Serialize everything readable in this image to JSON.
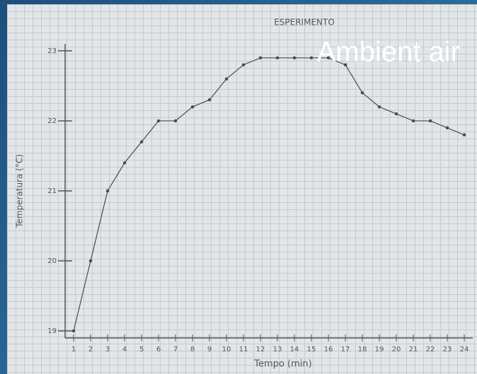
{
  "chart_data": {
    "type": "line",
    "annotation": "ESPERIMENTO",
    "overlay_title": "Ambient air",
    "xlabel": "Tempo (min)",
    "ylabel": "Temperatura (°C)",
    "x": [
      1,
      2,
      3,
      4,
      5,
      6,
      7,
      8,
      9,
      10,
      11,
      12,
      13,
      14,
      15,
      16,
      17,
      18,
      19,
      20,
      21,
      22,
      23,
      24
    ],
    "series": [
      {
        "color": "#4a4a4a",
        "values": [
          19.0,
          20.0,
          21.0,
          21.4,
          21.7,
          22.0,
          22.0,
          22.2,
          22.3,
          22.6,
          22.8,
          22.9,
          22.9,
          22.9,
          22.9,
          22.9,
          22.8,
          22.4,
          22.2,
          22.1,
          22.0,
          22.0,
          21.9,
          21.8
        ]
      }
    ],
    "xlim": [
      0.5,
      24.5
    ],
    "ylim": [
      18.9,
      23.1
    ],
    "xticks": [
      1,
      2,
      3,
      4,
      5,
      6,
      7,
      8,
      9,
      10,
      11,
      12,
      13,
      14,
      15,
      16,
      17,
      18,
      19,
      20,
      21,
      22,
      23,
      24
    ],
    "yticks": [
      19,
      20,
      21,
      22,
      23
    ]
  }
}
